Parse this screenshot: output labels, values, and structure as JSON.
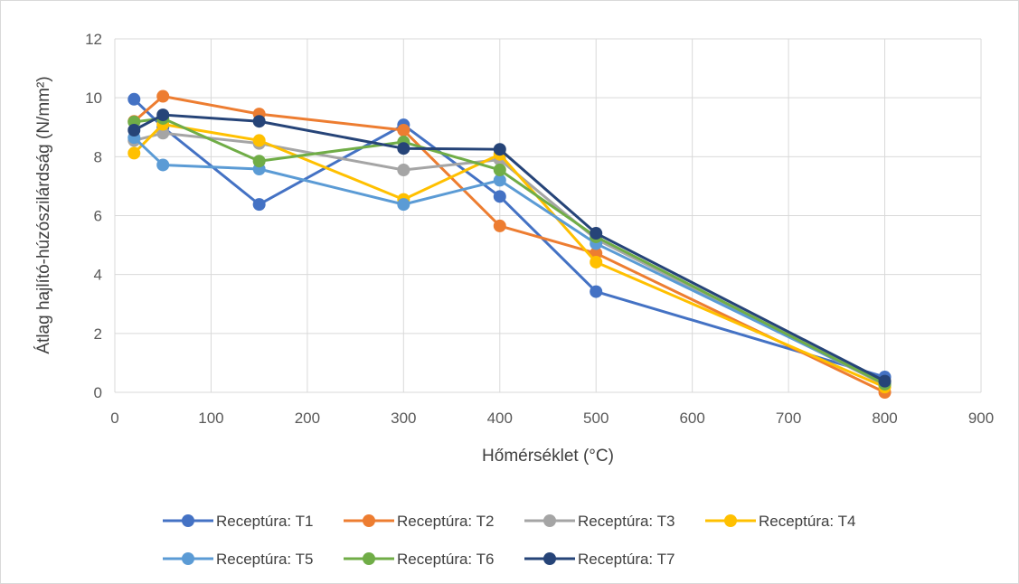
{
  "chart_data": {
    "type": "line",
    "title": "",
    "xlabel": "Hőmérséklet (°C)",
    "ylabel": "Átlag hajlító-húzószilárdság (N/mm²)",
    "xlim": [
      0,
      900
    ],
    "ylim": [
      0,
      12
    ],
    "xticks": [
      "0",
      "100",
      "200",
      "300",
      "400",
      "500",
      "600",
      "700",
      "800",
      "900"
    ],
    "yticks": [
      "0",
      "2",
      "4",
      "6",
      "8",
      "10",
      "12"
    ],
    "x": [
      20,
      50,
      150,
      300,
      400,
      500,
      800
    ],
    "grid": true,
    "legend_position": "bottom",
    "series": [
      {
        "name": "Receptúra: T1",
        "color": "#4472c4",
        "values": [
          9.95,
          9.0,
          6.38,
          9.08,
          6.65,
          3.42,
          0.52
        ]
      },
      {
        "name": "Receptúra: T2",
        "color": "#ed7d31",
        "values": [
          9.2,
          10.05,
          9.45,
          8.9,
          5.65,
          4.72,
          0.0
        ]
      },
      {
        "name": "Receptúra: T3",
        "color": "#a5a5a5",
        "values": [
          8.55,
          8.8,
          8.45,
          7.55,
          7.9,
          5.2,
          0.25
        ]
      },
      {
        "name": "Receptúra: T4",
        "color": "#ffc000",
        "values": [
          8.12,
          9.1,
          8.55,
          6.55,
          8.08,
          4.42,
          0.18
        ]
      },
      {
        "name": "Receptúra: T5",
        "color": "#5b9bd5",
        "values": [
          8.65,
          7.72,
          7.58,
          6.38,
          7.2,
          5.05,
          0.3
        ]
      },
      {
        "name": "Receptúra: T6",
        "color": "#70ad47",
        "values": [
          9.18,
          9.3,
          7.85,
          8.5,
          7.55,
          5.28,
          0.28
        ]
      },
      {
        "name": "Receptúra: T7",
        "color": "#264478",
        "values": [
          8.9,
          9.42,
          9.2,
          8.28,
          8.25,
          5.4,
          0.38
        ]
      }
    ]
  }
}
